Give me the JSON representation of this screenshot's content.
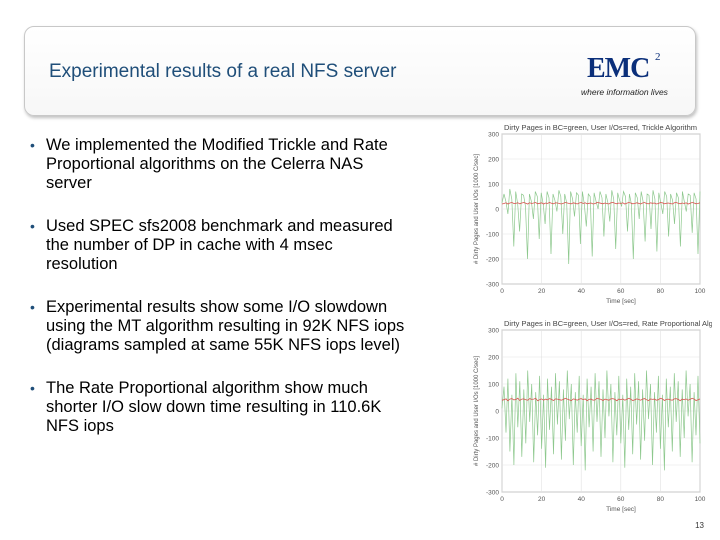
{
  "slide": {
    "title": "Experimental results of a real NFS server",
    "page_number": "13",
    "title_color": "#1f4e79"
  },
  "logo": {
    "brand": "EMC",
    "superscript": "2",
    "tagline": "where information lives"
  },
  "bullets": [
    "We implemented the Modified Trickle and Rate Proportional algorithms on the Celerra NAS server",
    "Used SPEC sfs2008 benchmark and measured the number of DP in cache with 4 msec resolution",
    "Experimental results show some I/O slowdown using the MT algorithm resulting in 92K NFS iops (diagrams sampled at same 55K NFS iops level)",
    "The Rate Proportional algorithm show much shorter I/O slow down time resulting in 110.6K NFS iops"
  ],
  "chart_data": [
    {
      "type": "line",
      "title": "Dirty Pages in BC=green, User I/Os=red, Trickle Algorithm",
      "xlabel": "Time [sec]",
      "ylabel": "# Dirty Pages and User I/Os [1000 C/sec]",
      "xlim": [
        0,
        100
      ],
      "ylim": [
        -300,
        300
      ],
      "xticks": [
        0,
        20,
        40,
        60,
        80,
        100
      ],
      "yticks": [
        -300,
        -200,
        -100,
        0,
        100,
        200,
        300
      ],
      "grid": true,
      "series": [
        {
          "color": "#8dc88d",
          "values": [
            25,
            60,
            30,
            -20,
            80,
            40,
            -150,
            70,
            20,
            -90,
            60,
            55,
            10,
            -200,
            60,
            30,
            -40,
            70,
            50,
            -120,
            65,
            20,
            -60,
            70,
            45,
            -180,
            60,
            35,
            -10,
            75,
            50,
            -100,
            60,
            25,
            -220,
            70,
            40,
            -30,
            65,
            55,
            -140,
            70,
            20,
            -70,
            60,
            50,
            -190,
            65,
            30,
            0,
            70,
            45,
            -110,
            60,
            25,
            -50,
            75,
            40,
            -160,
            65,
            35,
            10,
            70,
            50,
            -90,
            60,
            20,
            -200,
            65,
            45,
            -40,
            70,
            30,
            -130,
            60,
            55,
            -80,
            75,
            40,
            -170,
            65,
            25,
            -20,
            70,
            50,
            -110,
            60,
            35,
            -60,
            65,
            45,
            -150,
            70,
            30,
            -10,
            60,
            55,
            -95,
            65,
            40,
            -180,
            70
          ]
        },
        {
          "color": "#d9534f",
          "values": [
            20,
            22,
            25,
            20,
            24,
            26,
            22,
            23,
            25,
            21,
            24,
            26,
            23,
            20,
            25,
            22,
            24,
            26,
            21,
            23,
            25,
            20,
            24,
            22,
            26,
            23,
            21,
            25,
            24,
            22,
            20,
            23,
            26,
            24,
            22,
            21,
            25,
            23,
            20,
            24,
            26,
            22,
            25,
            21,
            23,
            24,
            20,
            22,
            26,
            25,
            23,
            21,
            24,
            22,
            20,
            25,
            26,
            23,
            21,
            24,
            22,
            25,
            20,
            23,
            26,
            24,
            21,
            22,
            25,
            23,
            20,
            24,
            26,
            22,
            21,
            25,
            23,
            24,
            20,
            22,
            26,
            25,
            21,
            23,
            24,
            22,
            20,
            25,
            26,
            23,
            21,
            24,
            22,
            25,
            20,
            23,
            26,
            24,
            21,
            22,
            25
          ]
        }
      ]
    },
    {
      "type": "line",
      "title": "Dirty Pages in BC=green, User I/Os=red, Rate Proportional Algorithm",
      "xlabel": "Time [sec]",
      "ylabel": "# Dirty Pages and User I/Os [1000 C/sec]",
      "xlim": [
        0,
        100
      ],
      "ylim": [
        -300,
        300
      ],
      "xticks": [
        0,
        20,
        40,
        60,
        80,
        100
      ],
      "yticks": [
        -300,
        -200,
        -100,
        0,
        100,
        200,
        300
      ],
      "grid": true,
      "series": [
        {
          "color": "#8dc88d",
          "values": [
            10,
            90,
            -80,
            120,
            -150,
            60,
            -200,
            140,
            -60,
            110,
            -170,
            80,
            -120,
            150,
            -40,
            100,
            -190,
            70,
            -90,
            130,
            -140,
            60,
            -210,
            120,
            -70,
            90,
            -160,
            140,
            -50,
            110,
            -180,
            80,
            -110,
            150,
            -30,
            100,
            -200,
            70,
            -80,
            130,
            -130,
            60,
            -220,
            120,
            -60,
            90,
            -150,
            140,
            -40,
            110,
            -170,
            80,
            -100,
            150,
            -20,
            100,
            -190,
            70,
            -90,
            130,
            -120,
            60,
            -210,
            120,
            -70,
            90,
            -160,
            140,
            -50,
            110,
            -180,
            80,
            -110,
            150,
            -30,
            100,
            -200,
            70,
            -80,
            130,
            -140,
            60,
            -220,
            120,
            -60,
            90,
            -150,
            140,
            -40,
            110,
            -170,
            80,
            -100,
            150,
            -20,
            100,
            -190,
            70,
            -90,
            130,
            -120
          ]
        },
        {
          "color": "#d9534f",
          "values": [
            40,
            42,
            45,
            38,
            44,
            46,
            41,
            43,
            47,
            39,
            44,
            45,
            42,
            40,
            46,
            43,
            44,
            47,
            38,
            42,
            45,
            40,
            44,
            41,
            46,
            43,
            39,
            45,
            44,
            42,
            40,
            43,
            47,
            44,
            41,
            39,
            45,
            43,
            40,
            44,
            46,
            42,
            45,
            38,
            43,
            44,
            40,
            41,
            47,
            45,
            43,
            39,
            44,
            42,
            40,
            45,
            46,
            43,
            38,
            44,
            42,
            45,
            40,
            43,
            47,
            44,
            39,
            41,
            45,
            43,
            40,
            44,
            46,
            42,
            38,
            45,
            43,
            44,
            40,
            42,
            47,
            45,
            39,
            43,
            44,
            41,
            40,
            45,
            46,
            43,
            38,
            44,
            42,
            45,
            40,
            43,
            47,
            44,
            39,
            41,
            45
          ]
        }
      ]
    }
  ]
}
